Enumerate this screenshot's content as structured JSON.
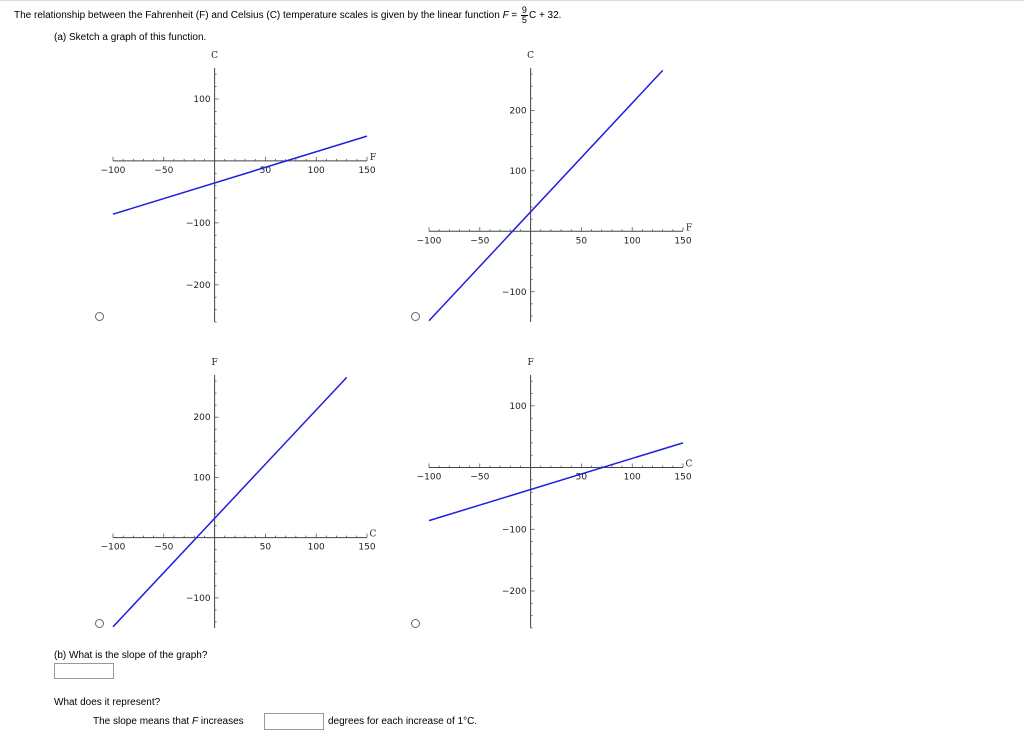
{
  "intro": {
    "text": "The relationship between the Fahrenheit (F) and Celsius (C) temperature scales is given by the linear function",
    "formula_lhs": "F =",
    "frac_num": "9",
    "frac_den": "5",
    "formula_rhs": "C + 32."
  },
  "part_a": {
    "prompt": "(a) Sketch a graph of this function."
  },
  "part_b": {
    "prompt": "(b) What is the slope of the graph?",
    "slope_value": "",
    "represent_prompt": "What does it represent?",
    "sentence_prefix": "The slope means that",
    "sentence_var": "F",
    "sentence_verb": "increases",
    "sentence_suffix": "degrees for each increase of 1°C.",
    "increase_value": ""
  },
  "colors": {
    "line": "#1f1fe0",
    "axis": "#444444",
    "radio_border": "#666666"
  },
  "icons": [
    "radio-button"
  ],
  "chart_data": [
    {
      "id": "option-1",
      "type": "line",
      "xlabel": "F",
      "ylabel": "C",
      "x_ticks": [
        "-100",
        "-50",
        "50",
        "100",
        "150"
      ],
      "y_ticks": [
        "100",
        "-100",
        "-200"
      ],
      "xlim": [
        -100,
        150
      ],
      "ylim": [
        -260,
        150
      ],
      "series": [
        {
          "x": [
            -100,
            150
          ],
          "y": [
            -86,
            40
          ]
        }
      ]
    },
    {
      "id": "option-2",
      "type": "line",
      "xlabel": "F",
      "ylabel": "C",
      "x_ticks": [
        "-100",
        "-50",
        "50",
        "100",
        "150"
      ],
      "y_ticks": [
        "200",
        "100",
        "-100"
      ],
      "xlim": [
        -100,
        150
      ],
      "ylim": [
        -150,
        270
      ],
      "series": [
        {
          "x": [
            -100,
            130
          ],
          "y": [
            -148,
            266
          ]
        }
      ]
    },
    {
      "id": "option-3",
      "type": "line",
      "xlabel": "C",
      "ylabel": "F",
      "x_ticks": [
        "-100",
        "-50",
        "50",
        "100",
        "150"
      ],
      "y_ticks": [
        "200",
        "100",
        "-100"
      ],
      "xlim": [
        -100,
        150
      ],
      "ylim": [
        -150,
        270
      ],
      "series": [
        {
          "x": [
            -100,
            130
          ],
          "y": [
            -148,
            266
          ]
        }
      ]
    },
    {
      "id": "option-4",
      "type": "line",
      "xlabel": "C",
      "ylabel": "F",
      "x_ticks": [
        "-100",
        "-50",
        "50",
        "100",
        "150"
      ],
      "y_ticks": [
        "100",
        "-100",
        "-200"
      ],
      "xlim": [
        -100,
        150
      ],
      "ylim": [
        -260,
        150
      ],
      "series": [
        {
          "x": [
            -100,
            150
          ],
          "y": [
            -86,
            40
          ]
        }
      ]
    }
  ]
}
